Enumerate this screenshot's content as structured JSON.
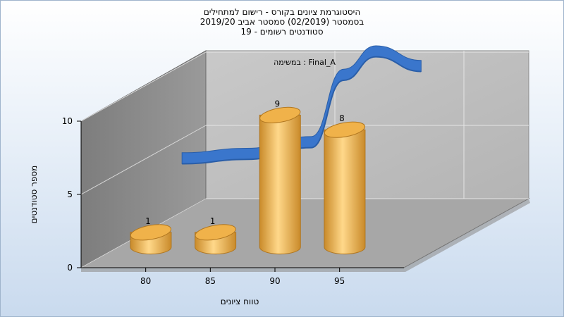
{
  "title": {
    "line1": "היסטוגרמת ציונים בקורס - רישום למתחילים",
    "line2": "בסמסטר  (02/2019)  סמסטר אביב 2019/20",
    "line3": "סטודנטים רשומים - 19"
  },
  "chart_data": {
    "type": "bar",
    "title": "היסטוגרמת ציונים בקורס - רישום למתחילים",
    "subtitle": "בסמסטר  (02/2019)  סמסטר אביב 2019/20 / סטודנטים רשומים - 19",
    "xlabel": "טווח ציונים",
    "ylabel": "מספר סטודנטים",
    "x_ticks": [
      "80",
      "85",
      "90",
      "95"
    ],
    "y_ticks": [
      0,
      5,
      10
    ],
    "ylim": [
      0,
      10
    ],
    "series_label": "במשימה : Final_A",
    "bar_color": "#e8a33a",
    "line_color": "#3a76cc",
    "series": [
      {
        "name": "Final_A",
        "values": [
          {
            "x": 77.5,
            "y": 1
          },
          {
            "x": 82.5,
            "y": 1
          },
          {
            "x": 87.5,
            "y": 9
          },
          {
            "x": 92.5,
            "y": 8
          }
        ]
      }
    ],
    "curve": [
      {
        "x": 77.5,
        "y": 4.5
      },
      {
        "x": 82.5,
        "y": 4.8
      },
      {
        "x": 87.5,
        "y": 5.6
      },
      {
        "x": 90,
        "y": 10.2
      },
      {
        "x": 92.5,
        "y": 11.8
      },
      {
        "x": 96,
        "y": 10.8
      }
    ]
  }
}
